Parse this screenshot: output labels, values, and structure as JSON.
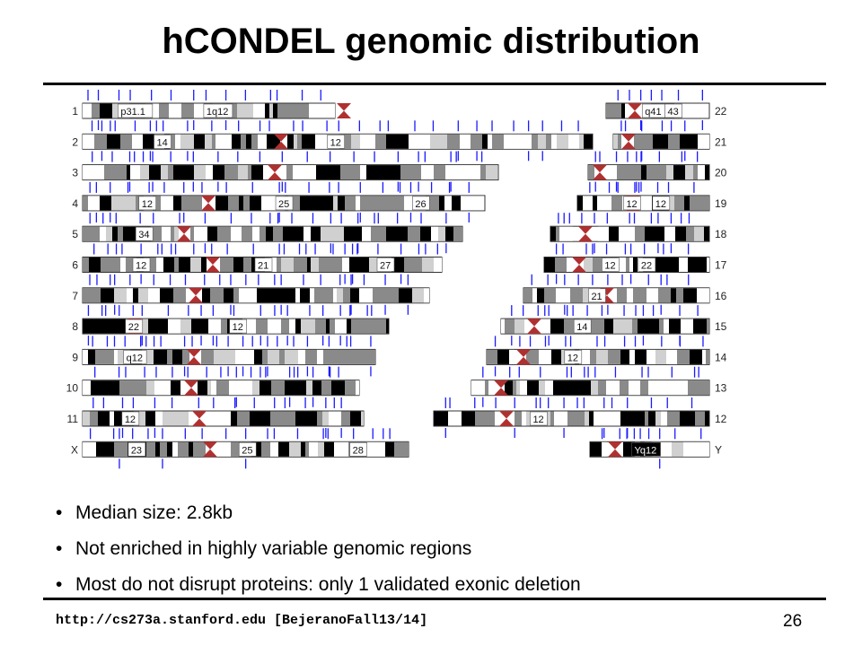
{
  "slide": {
    "title": "hCONDEL genomic distribution",
    "bullets": [
      "Median size: 2.8kb",
      "Not enriched in highly variable genomic regions",
      "Most do not disrupt proteins:  only 1 validated exonic deletion"
    ],
    "footer_url": "http://cs273a.stanford.edu [BejeranoFall13/14]",
    "page_number": "26"
  },
  "karyogram": {
    "colors": {
      "tick": "#1a1aff",
      "centromere": "#b03030",
      "band_dark": "#000000",
      "band_gray": "#8a8a8a",
      "band_light": "#d0d0d0",
      "stalk": "#c98888"
    },
    "left_labels": [
      "1",
      "2",
      "3",
      "4",
      "5",
      "6",
      "7",
      "8",
      "9",
      "10",
      "11",
      "X"
    ],
    "right_labels": [
      "22",
      "21",
      "20",
      "19",
      "18",
      "17",
      "16",
      "15",
      "14",
      "13",
      "12",
      "Y"
    ],
    "left_band_labels": [
      [
        "p31.1",
        "1q12"
      ],
      [
        "14",
        "12"
      ],
      [],
      [
        "12",
        "25",
        "26"
      ],
      [
        "34"
      ],
      [
        "12",
        "21",
        "27"
      ],
      [],
      [
        "22",
        "12"
      ],
      [
        "q12"
      ],
      [],
      [
        "12"
      ],
      [
        "23",
        "25",
        "28"
      ]
    ],
    "right_band_labels": [
      [
        "q41",
        "43"
      ],
      [],
      [],
      [
        "12",
        "12"
      ],
      [],
      [
        "12",
        "22"
      ],
      [
        "21"
      ],
      [
        "14"
      ],
      [
        "12"
      ],
      [],
      [
        "12"
      ],
      [
        "Yq12"
      ]
    ]
  }
}
